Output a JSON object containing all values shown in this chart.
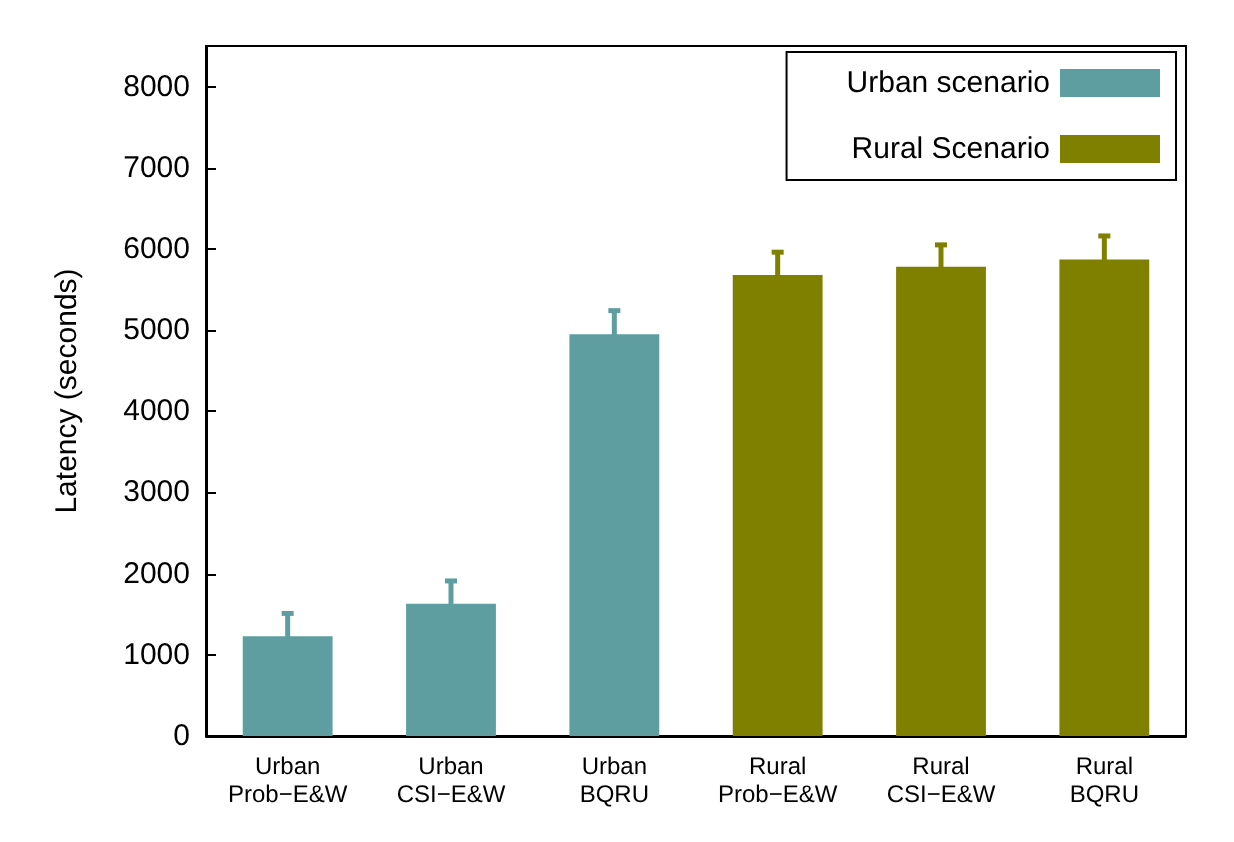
{
  "chart_data": {
    "type": "bar",
    "ylabel": "Latency (seconds)",
    "categories": [
      "Urban\nProb−E&W",
      "Urban\nCSI−E&W",
      "Urban\nBQRU",
      "Rural\nProb−E&W",
      "Rural\nCSI−E&W",
      "Rural\nBQRU"
    ],
    "series": [
      {
        "name": "Urban scenario",
        "color": "#5f9ea0",
        "values": [
          1230,
          1630,
          4950,
          null,
          null,
          null
        ],
        "errors": [
          280,
          280,
          290,
          null,
          null,
          null
        ]
      },
      {
        "name": "Rural Scenario",
        "color": "#808000",
        "values": [
          null,
          null,
          null,
          5680,
          5780,
          5870
        ],
        "errors": [
          null,
          null,
          null,
          280,
          270,
          290
        ]
      }
    ],
    "ylim": [
      0,
      8500
    ],
    "yticks": [
      0,
      1000,
      2000,
      3000,
      4000,
      5000,
      6000,
      7000,
      8000
    ],
    "grid": false,
    "legend": "top right"
  }
}
